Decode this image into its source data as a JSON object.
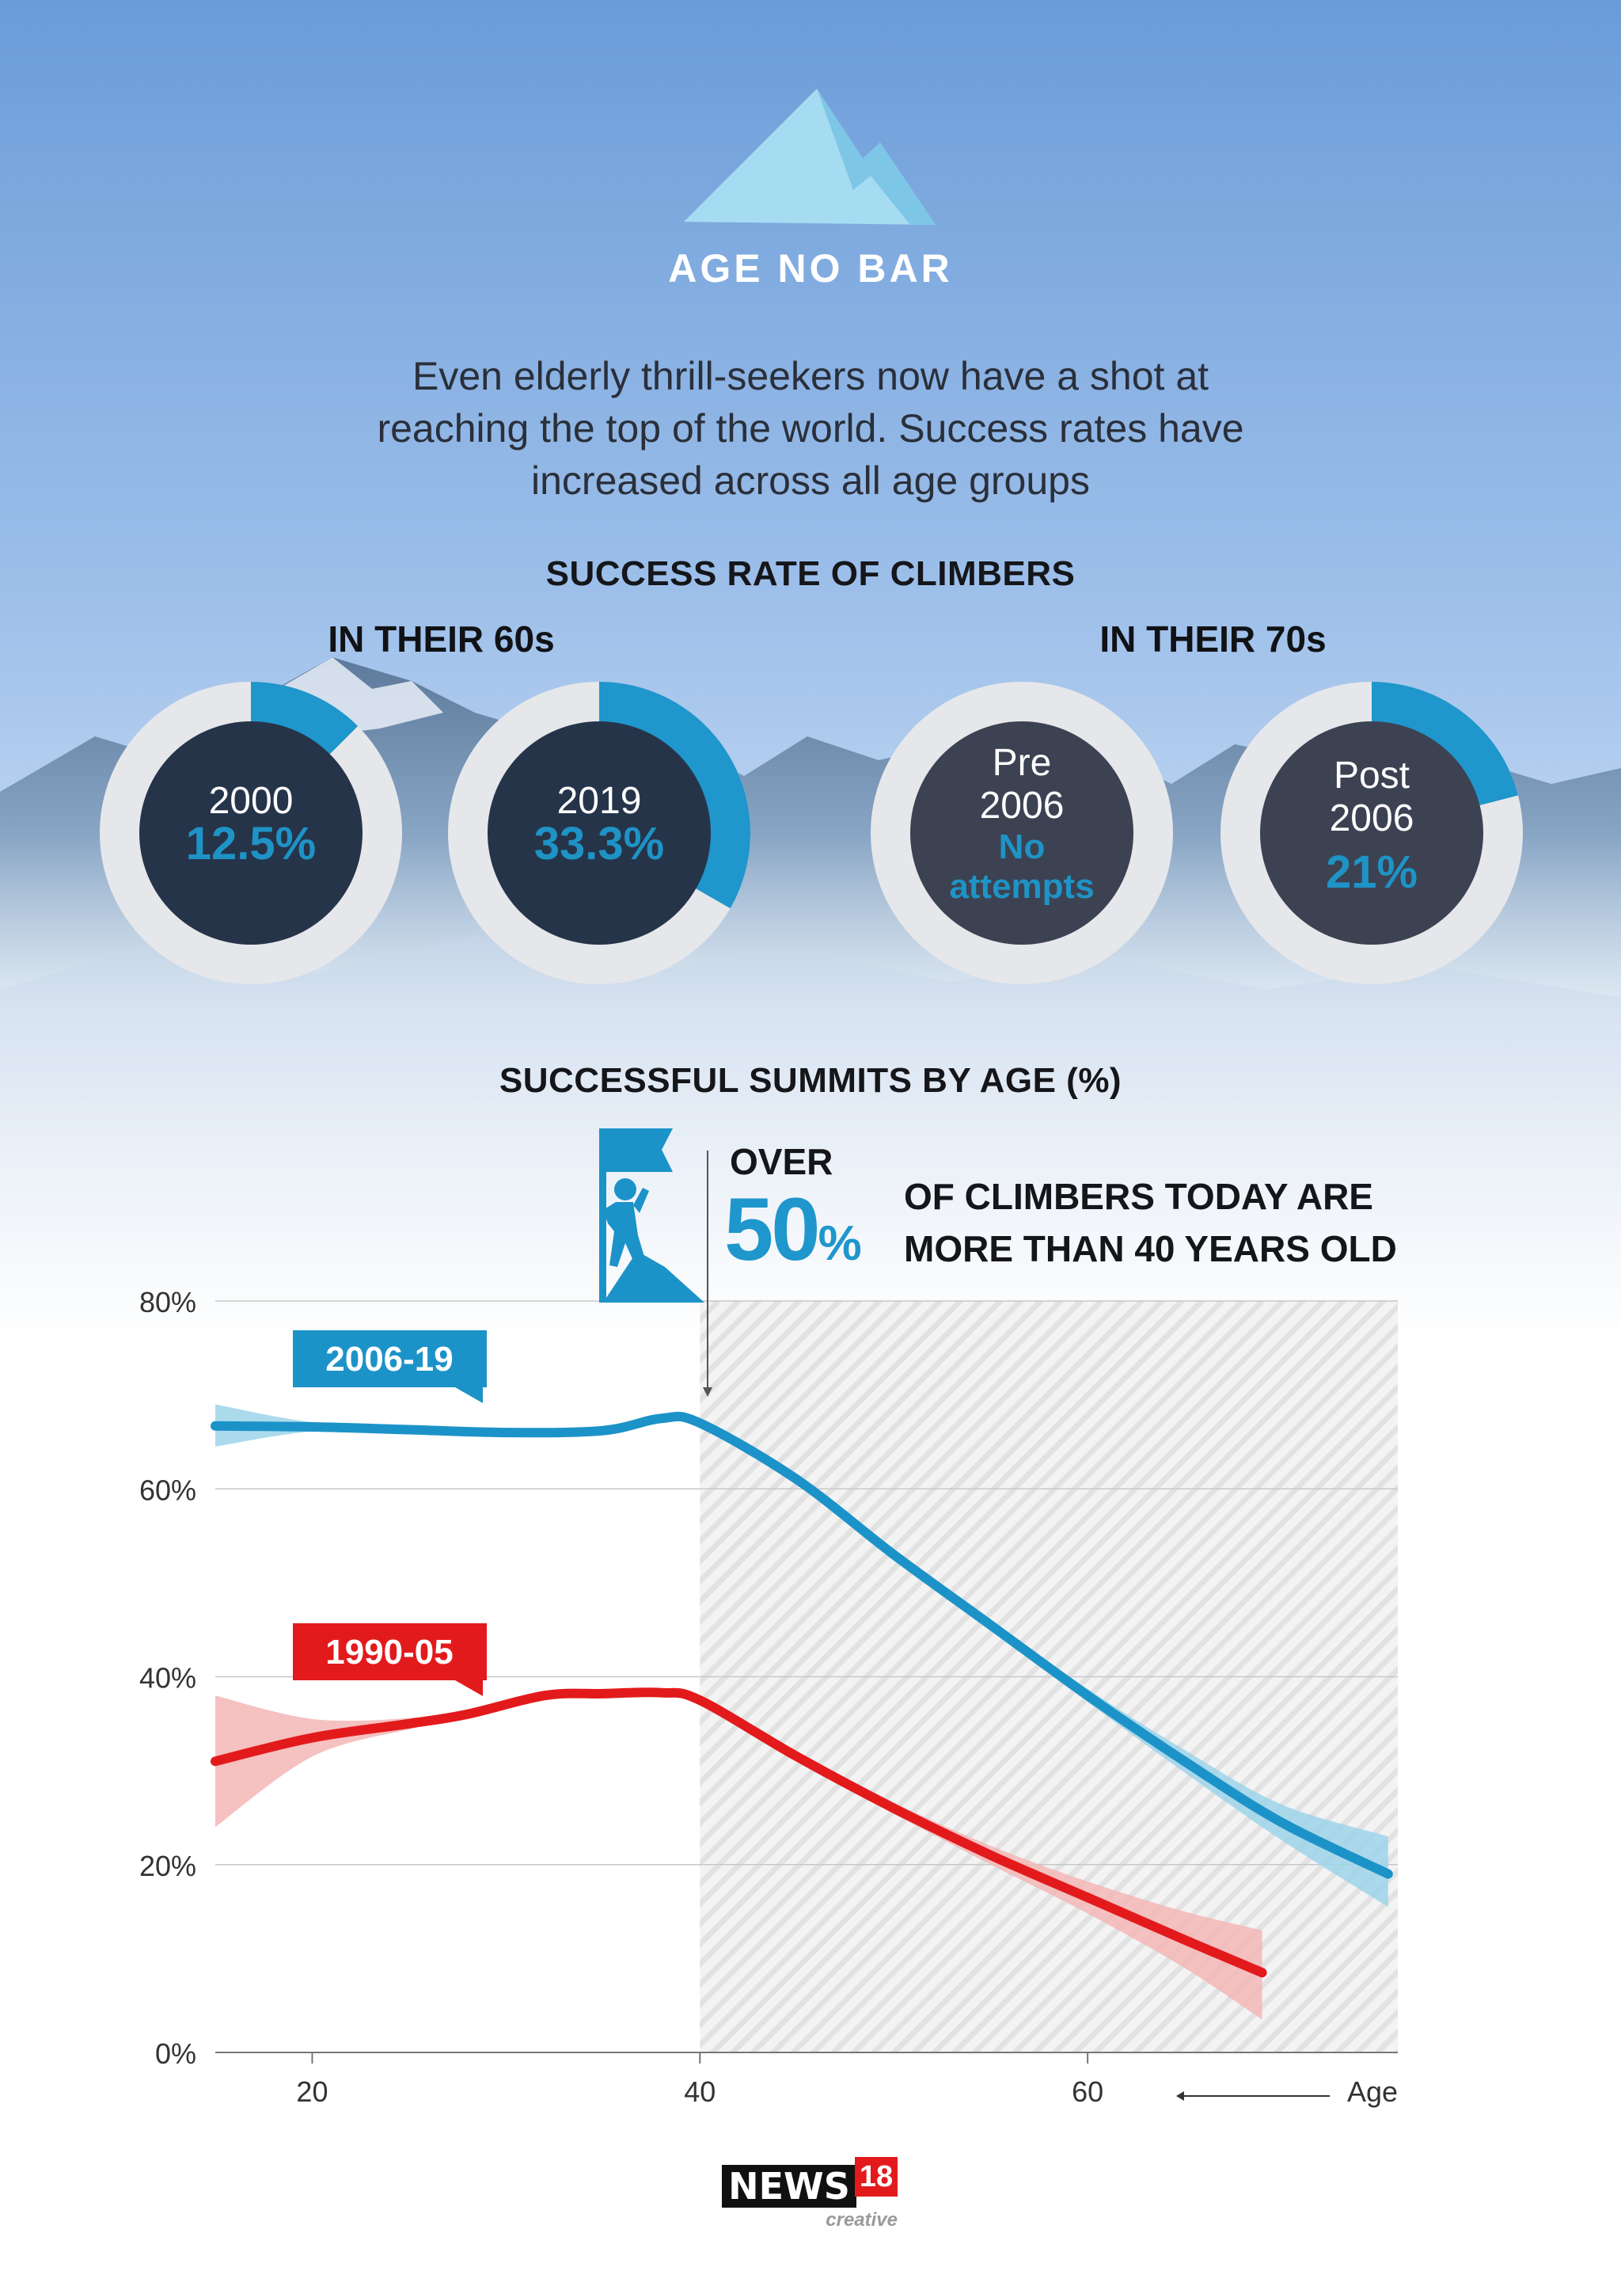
{
  "header": {
    "title": "AGE NO BAR",
    "subtitle_lines": [
      "Even elderly thrill-seekers now have a shot at",
      "reaching the top of the world. Success rates have",
      "increased across all age groups"
    ]
  },
  "success_rate": {
    "heading": "SUCCESS RATE OF CLIMBERS",
    "groups": [
      {
        "label": "IN THEIR 60s",
        "donuts": [
          {
            "lines": [
              "2000"
            ],
            "value": "12.5%",
            "fraction": 0.125
          },
          {
            "lines": [
              "2019"
            ],
            "value": "33.3%",
            "fraction": 0.333
          }
        ]
      },
      {
        "label": "IN THEIR 70s",
        "donuts": [
          {
            "lines": [
              "Pre",
              "2006"
            ],
            "value_lines": [
              "No",
              "attempts"
            ],
            "fraction": 0
          },
          {
            "lines": [
              "Post",
              "2006"
            ],
            "value": "21%",
            "fraction": 0.21
          }
        ]
      }
    ]
  },
  "summits": {
    "heading": "SUCCESSFUL SUMMITS BY AGE (%)",
    "callout": {
      "over": "OVER",
      "big_number": "50",
      "big_unit": "%",
      "lines": [
        "OF CLIMBERS TODAY ARE",
        "MORE THAN 40 YEARS OLD"
      ]
    }
  },
  "chart_data": {
    "type": "line",
    "xlabel": "Age",
    "ylabel": "",
    "xlim": [
      15,
      76
    ],
    "ylim": [
      0,
      80
    ],
    "x_ticks": [
      20,
      40,
      60
    ],
    "y_ticks": [
      0,
      20,
      40,
      60,
      80
    ],
    "y_tick_labels": [
      "0%",
      "20%",
      "40%",
      "60%",
      "80%"
    ],
    "highlight_region": [
      40,
      76
    ],
    "grid": true,
    "series": [
      {
        "name": "2006-19",
        "color": "#1c93c8",
        "band_color": "#9ed3ea",
        "x": [
          15,
          20,
          25,
          30,
          35,
          38,
          40,
          45,
          50,
          55,
          60,
          65,
          70,
          75.5
        ],
        "y": [
          66.7,
          66.6,
          66.3,
          66.0,
          66.2,
          67.5,
          67.0,
          61.0,
          53.0,
          45.5,
          38.0,
          31.0,
          24.5,
          19.0
        ],
        "lower": [
          64.5,
          66.1,
          65.8,
          65.6,
          65.8,
          67.1,
          66.6,
          60.6,
          52.5,
          45.0,
          37.3,
          29.8,
          22.6,
          15.5
        ],
        "upper": [
          69.0,
          67.1,
          66.8,
          66.4,
          66.6,
          67.9,
          67.4,
          61.4,
          53.5,
          46.0,
          38.7,
          32.2,
          26.4,
          23.0
        ]
      },
      {
        "name": "1990-05",
        "color": "#e31a1c",
        "band_color": "#f3b6b6",
        "x": [
          15,
          20,
          25,
          28,
          32,
          35,
          38,
          40,
          45,
          50,
          55,
          60,
          65,
          69
        ],
        "y": [
          31.0,
          33.5,
          35.0,
          36.0,
          38.0,
          38.2,
          38.3,
          37.5,
          31.5,
          26.0,
          21.0,
          16.5,
          12.0,
          8.5
        ],
        "lower": [
          24.0,
          31.5,
          34.4,
          35.5,
          37.6,
          37.9,
          38.0,
          37.1,
          31.0,
          25.4,
          20.0,
          14.8,
          9.0,
          3.5
        ],
        "upper": [
          38.0,
          35.5,
          35.6,
          36.5,
          38.4,
          38.5,
          38.6,
          37.9,
          32.0,
          26.6,
          22.0,
          18.2,
          15.0,
          13.0
        ]
      }
    ]
  },
  "branding": {
    "logo_word": "NEWS",
    "logo_number": "18",
    "logo_sub": "creative"
  },
  "colors": {
    "sky_top": "#6b9cd8",
    "accent_blue": "#1f96cc",
    "accent_red": "#e31a1c",
    "donut_track": "#e6e7ea",
    "donut_center": "#26344a"
  }
}
